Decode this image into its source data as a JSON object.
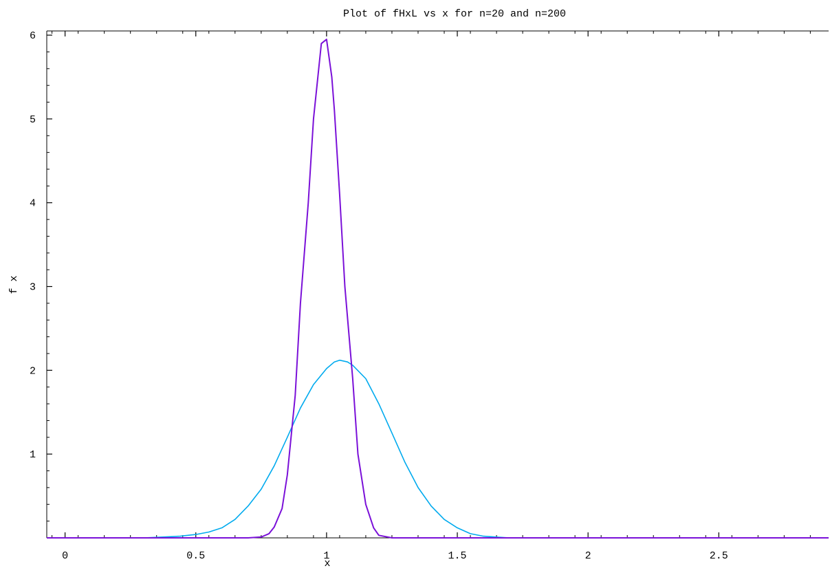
{
  "chart_data": {
    "type": "line",
    "title": "Plot of fHxL vs x for n=20 and n=200",
    "xlabel": "x",
    "ylabel": "f x",
    "xlim": [
      -0.07,
      2.92
    ],
    "ylim": [
      0,
      6.05
    ],
    "x_ticks": [
      0,
      0.5,
      1,
      1.5,
      2,
      2.5
    ],
    "x_tick_labels": [
      "0",
      "0.5",
      "1",
      "1.5",
      "2",
      "2.5"
    ],
    "y_ticks": [
      1,
      2,
      3,
      4,
      5,
      6
    ],
    "y_tick_labels": [
      "1",
      "2",
      "3",
      "4",
      "5",
      "6"
    ],
    "grid": false,
    "series": [
      {
        "color": "#00aaee",
        "x": [
          -0.07,
          0.3,
          0.44,
          0.5,
          0.55,
          0.6,
          0.65,
          0.7,
          0.75,
          0.8,
          0.85,
          0.9,
          0.95,
          1.0,
          1.03,
          1.05,
          1.08,
          1.1,
          1.15,
          1.2,
          1.25,
          1.3,
          1.35,
          1.4,
          1.45,
          1.5,
          1.55,
          1.6,
          1.65,
          1.7,
          2.0,
          2.92
        ],
        "y": [
          0,
          0,
          0.02,
          0.04,
          0.07,
          0.12,
          0.22,
          0.38,
          0.58,
          0.86,
          1.2,
          1.55,
          1.83,
          2.02,
          2.1,
          2.12,
          2.1,
          2.06,
          1.9,
          1.6,
          1.25,
          0.9,
          0.6,
          0.38,
          0.22,
          0.12,
          0.05,
          0.02,
          0.01,
          0.0,
          0,
          0
        ]
      },
      {
        "color": "#7a10d8",
        "x": [
          -0.07,
          0.7,
          0.75,
          0.78,
          0.8,
          0.83,
          0.85,
          0.88,
          0.9,
          0.93,
          0.95,
          0.97,
          0.98,
          1.0,
          1.02,
          1.03,
          1.05,
          1.07,
          1.1,
          1.12,
          1.15,
          1.18,
          1.2,
          1.25,
          2.92
        ],
        "y": [
          0,
          0,
          0.01,
          0.05,
          0.13,
          0.35,
          0.75,
          1.7,
          2.8,
          4.0,
          5.0,
          5.6,
          5.9,
          5.95,
          5.5,
          5.1,
          4.1,
          3.0,
          1.9,
          1.0,
          0.4,
          0.12,
          0.03,
          0.0,
          0
        ]
      }
    ]
  }
}
